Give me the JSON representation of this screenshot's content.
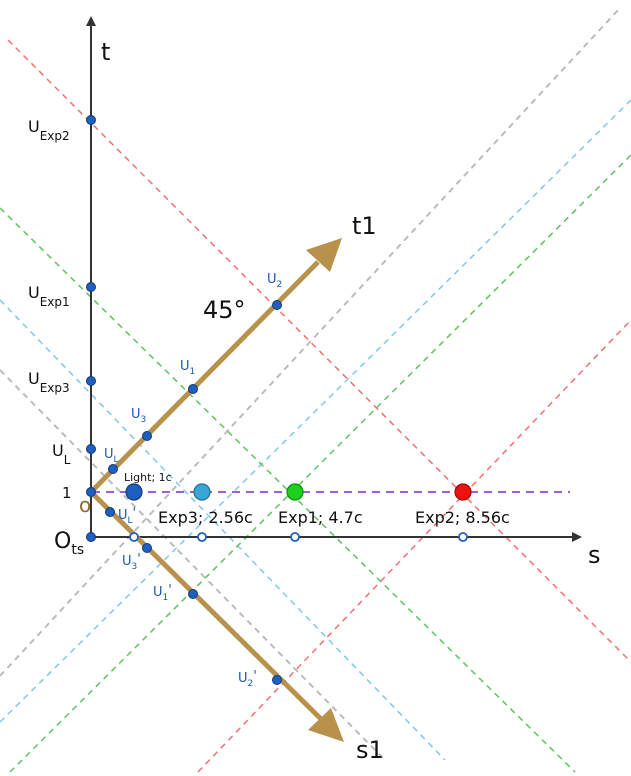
{
  "axes": {
    "t_label": "t",
    "s_label": "s",
    "t1_label": "t1",
    "s1_label": "s1",
    "origin_label": "O",
    "origin_sub": "ts",
    "one_label": "1",
    "o_label": "o",
    "angle_label": "45°"
  },
  "t_axis_points": [
    {
      "main": "U",
      "sub": "Exp2"
    },
    {
      "main": "U",
      "sub": "Exp1"
    },
    {
      "main": "U",
      "sub": "Exp3"
    },
    {
      "main": "U",
      "sub": "L"
    }
  ],
  "t1_points": [
    {
      "main": "U",
      "sub": "L"
    },
    {
      "main": "U",
      "sub": "3"
    },
    {
      "main": "U",
      "sub": "1"
    },
    {
      "main": "U",
      "sub": "2"
    }
  ],
  "s1_points": [
    {
      "main": "U",
      "sub": "L",
      "prime": "'"
    },
    {
      "main": "U",
      "sub": "3",
      "prime": "'"
    },
    {
      "main": "U",
      "sub": "1",
      "prime": "'"
    },
    {
      "main": "U",
      "sub": "2",
      "prime": "'"
    }
  ],
  "objects": [
    {
      "label": "Light; 1c",
      "color": "#1f5fbf"
    },
    {
      "label": "Exp3; 2.56c",
      "color": "#3aa6d6"
    },
    {
      "label": "Exp1; 4.7c",
      "color": "#1ed01e"
    },
    {
      "label": "Exp2; 8.56c",
      "color": "#ee1111"
    }
  ],
  "colors": {
    "axis": "#333333",
    "frame_axis": "#b8914a",
    "point": "#1f5fbf",
    "dashed_line": "#9b5fd9",
    "grey_line": "#bbbbbb",
    "cyan_line": "#7ec8ec",
    "green_line": "#5cc45c",
    "red_line": "#f07070"
  }
}
